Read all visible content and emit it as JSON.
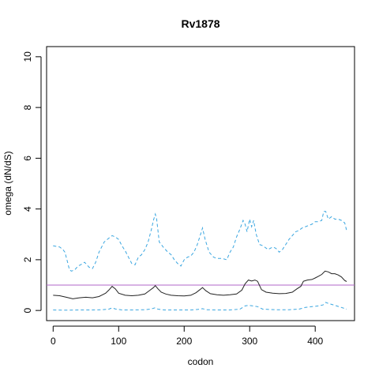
{
  "chart_data": {
    "type": "line",
    "title": "Rv1878",
    "xlabel": "codon",
    "ylabel": "omega (dN/dS)",
    "xlim": [
      -10,
      460
    ],
    "ylim": [
      -0.4,
      10.4
    ],
    "x_ticks": [
      0,
      100,
      200,
      300,
      400
    ],
    "x_tick_labels": [
      "0",
      "100",
      "200",
      "300",
      "400"
    ],
    "y_ticks": [
      0,
      2,
      4,
      6,
      8,
      10
    ],
    "y_tick_labels": [
      "0",
      "2",
      "4",
      "6",
      "8",
      "10"
    ],
    "grid": false,
    "reference_line": {
      "y": 1,
      "color": "#b264c8"
    },
    "series": [
      {
        "role": "upper",
        "style": "dashed",
        "color": "#3aa6e0",
        "x": [
          0,
          10,
          15,
          18,
          22,
          25,
          28,
          33,
          38,
          42,
          48,
          55,
          60,
          65,
          70,
          78,
          85,
          90,
          95,
          100,
          105,
          110,
          115,
          120,
          125,
          130,
          135,
          140,
          145,
          150,
          153,
          156,
          158,
          162,
          168,
          175,
          180,
          185,
          190,
          195,
          200,
          205,
          210,
          215,
          220,
          225,
          228,
          232,
          238,
          245,
          250,
          258,
          265,
          270,
          275,
          280,
          285,
          290,
          293,
          296,
          300,
          303,
          306,
          310,
          315,
          320,
          328,
          335,
          340,
          345,
          350,
          355,
          360,
          365,
          370,
          375,
          380,
          385,
          390,
          395,
          400,
          405,
          410,
          413,
          416,
          420,
          425,
          430,
          435,
          440,
          445,
          448
        ],
        "y": [
          2.55,
          2.5,
          2.4,
          2.3,
          1.9,
          1.6,
          1.55,
          1.6,
          1.75,
          1.8,
          1.9,
          1.7,
          1.65,
          1.9,
          2.3,
          2.7,
          2.85,
          2.95,
          2.9,
          2.8,
          2.55,
          2.35,
          2.1,
          1.85,
          1.8,
          2.1,
          2.2,
          2.4,
          2.7,
          3.2,
          3.55,
          3.8,
          3.6,
          2.7,
          2.5,
          2.3,
          2.2,
          2.0,
          1.85,
          1.75,
          2.0,
          2.1,
          2.15,
          2.3,
          2.6,
          3.0,
          3.25,
          2.8,
          2.3,
          2.1,
          2.05,
          2.05,
          2.0,
          2.3,
          2.5,
          2.9,
          3.2,
          3.55,
          3.4,
          3.1,
          3.6,
          3.3,
          3.55,
          3.0,
          2.6,
          2.55,
          2.4,
          2.5,
          2.45,
          2.3,
          2.4,
          2.6,
          2.8,
          2.95,
          3.1,
          3.15,
          3.25,
          3.3,
          3.35,
          3.4,
          3.5,
          3.5,
          3.55,
          3.9,
          3.9,
          3.6,
          3.7,
          3.6,
          3.6,
          3.55,
          3.45,
          3.15
        ]
      },
      {
        "role": "estimate",
        "style": "solid",
        "color": "#222222",
        "x": [
          0,
          10,
          20,
          30,
          40,
          50,
          60,
          70,
          80,
          85,
          90,
          95,
          100,
          110,
          120,
          130,
          140,
          148,
          153,
          156,
          160,
          165,
          172,
          180,
          190,
          200,
          210,
          218,
          224,
          228,
          233,
          240,
          250,
          260,
          270,
          280,
          288,
          293,
          298,
          303,
          308,
          312,
          318,
          325,
          335,
          345,
          355,
          365,
          372,
          378,
          382,
          388,
          395,
          400,
          405,
          410,
          415,
          420,
          425,
          430,
          435,
          440,
          445,
          448
        ],
        "y": [
          0.6,
          0.58,
          0.52,
          0.46,
          0.5,
          0.52,
          0.5,
          0.55,
          0.68,
          0.8,
          0.95,
          0.85,
          0.68,
          0.6,
          0.58,
          0.6,
          0.65,
          0.8,
          0.9,
          0.98,
          0.85,
          0.72,
          0.65,
          0.6,
          0.58,
          0.57,
          0.6,
          0.7,
          0.82,
          0.9,
          0.78,
          0.66,
          0.62,
          0.6,
          0.62,
          0.65,
          0.8,
          1.05,
          1.2,
          1.16,
          1.2,
          1.15,
          0.82,
          0.72,
          0.68,
          0.66,
          0.67,
          0.72,
          0.85,
          0.95,
          1.15,
          1.2,
          1.22,
          1.28,
          1.35,
          1.42,
          1.55,
          1.52,
          1.45,
          1.45,
          1.4,
          1.32,
          1.18,
          1.14
        ]
      },
      {
        "role": "lower",
        "style": "dashed",
        "color": "#3aa6e0",
        "x": [
          0,
          20,
          40,
          60,
          75,
          85,
          90,
          95,
          105,
          120,
          140,
          150,
          155,
          160,
          170,
          190,
          210,
          220,
          228,
          235,
          250,
          270,
          285,
          293,
          298,
          305,
          312,
          320,
          340,
          360,
          375,
          385,
          395,
          405,
          412,
          416,
          420,
          430,
          440,
          448
        ],
        "y": [
          0.02,
          0.01,
          0.02,
          0.02,
          0.03,
          0.05,
          0.1,
          0.06,
          0.02,
          0.02,
          0.03,
          0.06,
          0.1,
          0.05,
          0.02,
          0.02,
          0.02,
          0.04,
          0.07,
          0.03,
          0.02,
          0.02,
          0.05,
          0.18,
          0.2,
          0.18,
          0.15,
          0.05,
          0.03,
          0.03,
          0.05,
          0.12,
          0.15,
          0.18,
          0.22,
          0.32,
          0.28,
          0.2,
          0.12,
          0.05
        ]
      }
    ]
  }
}
